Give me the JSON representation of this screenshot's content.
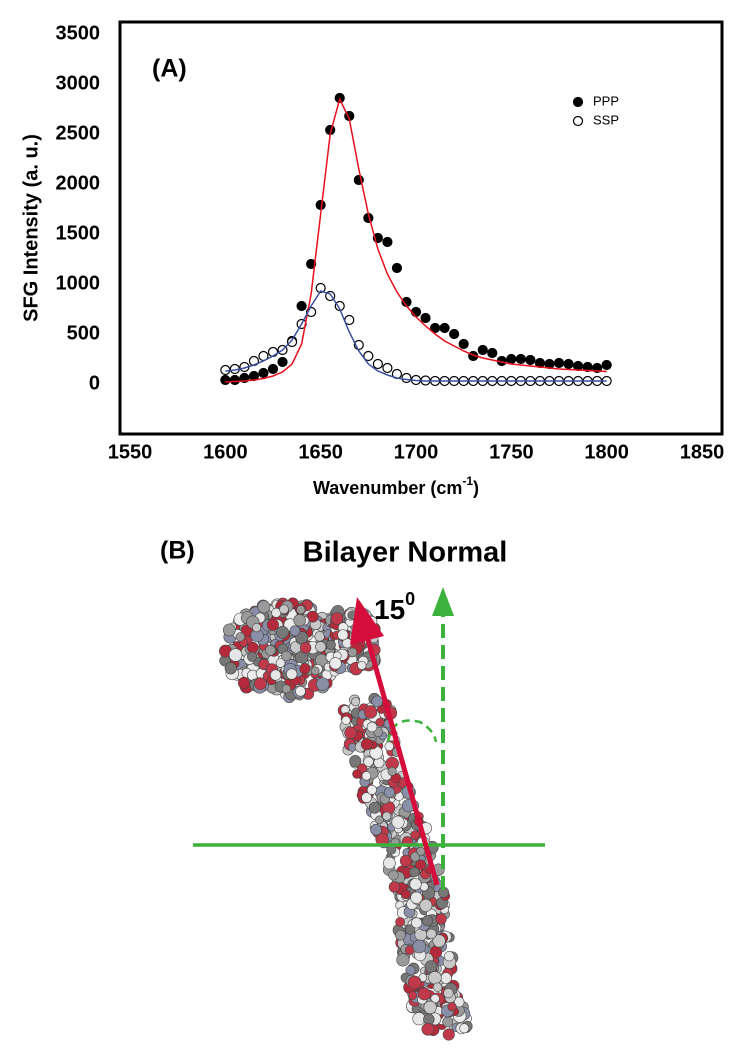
{
  "chart_data": {
    "type": "scatter",
    "title": "(A)",
    "xlabel": {
      "text": "Wavenumber (cm",
      "sup": "-1",
      "end": ")"
    },
    "ylabel": "SFG Intensity (a. u.)",
    "xlim": [
      1550,
      1850
    ],
    "ylim": [
      -500,
      3500
    ],
    "xticks": [
      1550,
      1600,
      1650,
      1700,
      1750,
      1800,
      1850
    ],
    "yticks": [
      0,
      500,
      1000,
      1500,
      2000,
      2500,
      3000,
      3500
    ],
    "legend": "upper right",
    "grid": false,
    "series": [
      {
        "name": "PPP",
        "color": "#000000",
        "marker": "filled",
        "x": [
          1600,
          1605,
          1610,
          1615,
          1620,
          1625,
          1630,
          1635,
          1640,
          1645,
          1650,
          1655,
          1660,
          1665,
          1670,
          1675,
          1680,
          1685,
          1690,
          1695,
          1700,
          1705,
          1710,
          1715,
          1720,
          1725,
          1730,
          1735,
          1740,
          1745,
          1750,
          1755,
          1760,
          1765,
          1770,
          1775,
          1780,
          1785,
          1790,
          1795,
          1800
        ],
        "values": [
          40,
          40,
          60,
          80,
          110,
          150,
          220,
          430,
          780,
          1200,
          1790,
          2540,
          2860,
          2680,
          2040,
          1660,
          1460,
          1420,
          1160,
          820,
          720,
          660,
          560,
          560,
          500,
          400,
          280,
          340,
          310,
          230,
          250,
          250,
          240,
          210,
          200,
          210,
          200,
          180,
          170,
          160,
          190
        ]
      },
      {
        "name": "SSP",
        "color": "#000000",
        "marker": "open",
        "x": [
          1600,
          1605,
          1610,
          1615,
          1620,
          1625,
          1630,
          1635,
          1640,
          1645,
          1650,
          1655,
          1660,
          1665,
          1670,
          1675,
          1680,
          1685,
          1690,
          1695,
          1700,
          1705,
          1710,
          1715,
          1720,
          1725,
          1730,
          1735,
          1740,
          1745,
          1750,
          1755,
          1760,
          1765,
          1770,
          1775,
          1780,
          1785,
          1790,
          1795,
          1800
        ],
        "values": [
          140,
          150,
          170,
          230,
          280,
          320,
          340,
          420,
          600,
          720,
          960,
          880,
          780,
          640,
          390,
          280,
          200,
          160,
          100,
          60,
          40,
          35,
          30,
          30,
          30,
          30,
          30,
          30,
          30,
          30,
          30,
          30,
          30,
          30,
          30,
          30,
          30,
          30,
          30,
          30,
          30
        ]
      },
      {
        "color": "#e8101c",
        "style": "line",
        "x": [
          1600,
          1605,
          1610,
          1615,
          1620,
          1625,
          1630,
          1635,
          1640,
          1645,
          1650,
          1655,
          1660,
          1665,
          1670,
          1675,
          1680,
          1685,
          1690,
          1695,
          1700,
          1705,
          1710,
          1715,
          1720,
          1725,
          1730,
          1735,
          1740,
          1745,
          1750,
          1755,
          1760,
          1765,
          1770,
          1775,
          1780,
          1785,
          1790,
          1795,
          1800
        ],
        "values": [
          20,
          25,
          30,
          40,
          55,
          80,
          120,
          200,
          400,
          900,
          1700,
          2500,
          2850,
          2650,
          2150,
          1700,
          1350,
          1100,
          920,
          780,
          670,
          580,
          500,
          430,
          380,
          330,
          290,
          260,
          240,
          220,
          200,
          190,
          180,
          170,
          160,
          150,
          145,
          140,
          135,
          130,
          125
        ]
      },
      {
        "color": "#3a4fa0",
        "style": "line",
        "x": [
          1600,
          1605,
          1610,
          1615,
          1620,
          1625,
          1630,
          1635,
          1640,
          1645,
          1650,
          1655,
          1660,
          1665,
          1670,
          1675,
          1680,
          1685,
          1690,
          1695,
          1700,
          1705,
          1710,
          1715,
          1720,
          1725,
          1730,
          1735,
          1740,
          1745,
          1750,
          1755,
          1760,
          1765,
          1770,
          1775,
          1780,
          1785,
          1790,
          1795,
          1800
        ],
        "values": [
          130,
          140,
          160,
          190,
          230,
          280,
          340,
          440,
          600,
          780,
          930,
          900,
          750,
          520,
          330,
          200,
          130,
          90,
          60,
          45,
          35,
          30,
          30,
          30,
          30,
          30,
          30,
          30,
          30,
          30,
          30,
          30,
          30,
          30,
          30,
          30,
          30,
          30,
          30,
          30,
          30
        ]
      }
    ]
  },
  "panel_b": {
    "label": "(B)",
    "normal_label": "Bilayer Normal",
    "angle": 15,
    "angle_sup": "0"
  }
}
